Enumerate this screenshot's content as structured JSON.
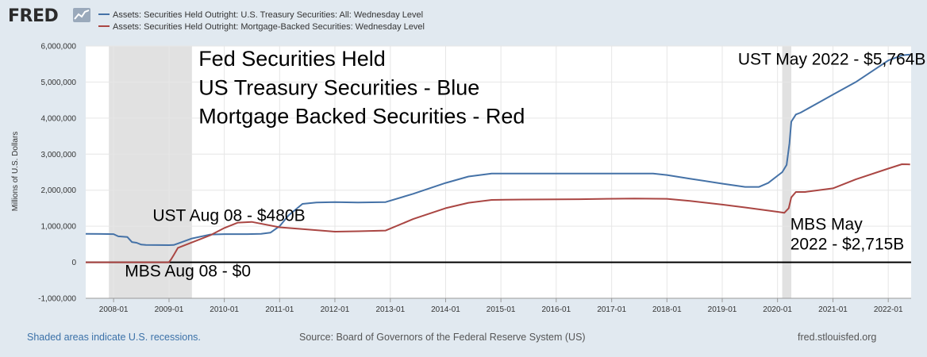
{
  "header": {
    "logo_text": "FRED",
    "logo_icon": "chart-line-icon"
  },
  "footer": {
    "recessions_note": "Shaded areas indicate U.S. recessions.",
    "source": "Source: Board of Governors of the Federal Reserve System (US)",
    "site": "fred.stlouisfed.org"
  },
  "chart_data": {
    "type": "line",
    "title": "",
    "ylabel": "Millions of U.S. Dollars",
    "xlabel": "",
    "ylim": [
      -1000000,
      6000000
    ],
    "xlim": [
      "2007-07-01",
      "2022-06-01"
    ],
    "y_ticks": [
      {
        "value": 6000000,
        "label": "6,000,000"
      },
      {
        "value": 5000000,
        "label": "5,000,000"
      },
      {
        "value": 4000000,
        "label": "4,000,000"
      },
      {
        "value": 3000000,
        "label": "3,000,000"
      },
      {
        "value": 2000000,
        "label": "2,000,000"
      },
      {
        "value": 1000000,
        "label": "1,000,000"
      },
      {
        "value": 0,
        "label": "0"
      },
      {
        "value": -1000000,
        "label": "-1,000,000"
      }
    ],
    "x_ticks": [
      "2008-01",
      "2009-01",
      "2010-01",
      "2011-01",
      "2012-01",
      "2013-01",
      "2014-01",
      "2015-01",
      "2016-01",
      "2017-01",
      "2018-01",
      "2019-01",
      "2020-01",
      "2021-01",
      "2022-01"
    ],
    "grid": true,
    "legend_placement": "top",
    "recessions": [
      {
        "start": "2007-12-01",
        "end": "2009-06-01"
      },
      {
        "start": "2020-02-01",
        "end": "2020-04-01"
      }
    ],
    "zero_line": true,
    "series": [
      {
        "name": "Assets: Securities Held Outright: U.S. Treasury Securities: All: Wednesday Level",
        "color": "#4572a7",
        "points": [
          [
            "2007-07-01",
            790000
          ],
          [
            "2008-01-01",
            780000
          ],
          [
            "2008-02-01",
            720000
          ],
          [
            "2008-04-01",
            700000
          ],
          [
            "2008-05-01",
            560000
          ],
          [
            "2008-06-01",
            540000
          ],
          [
            "2008-07-01",
            490000
          ],
          [
            "2008-08-01",
            480000
          ],
          [
            "2009-01-01",
            475000
          ],
          [
            "2009-02-01",
            480000
          ],
          [
            "2009-03-01",
            520000
          ],
          [
            "2009-06-01",
            660000
          ],
          [
            "2009-10-01",
            770000
          ],
          [
            "2010-01-01",
            780000
          ],
          [
            "2010-06-01",
            780000
          ],
          [
            "2010-09-01",
            790000
          ],
          [
            "2010-11-01",
            820000
          ],
          [
            "2011-01-01",
            1000000
          ],
          [
            "2011-03-01",
            1300000
          ],
          [
            "2011-06-01",
            1620000
          ],
          [
            "2011-09-01",
            1660000
          ],
          [
            "2012-01-01",
            1670000
          ],
          [
            "2012-06-01",
            1660000
          ],
          [
            "2012-12-01",
            1670000
          ],
          [
            "2013-06-01",
            1900000
          ],
          [
            "2014-01-01",
            2200000
          ],
          [
            "2014-06-01",
            2380000
          ],
          [
            "2014-11-01",
            2460000
          ],
          [
            "2016-01-01",
            2460000
          ],
          [
            "2017-01-01",
            2460000
          ],
          [
            "2017-10-01",
            2460000
          ],
          [
            "2018-01-01",
            2420000
          ],
          [
            "2018-06-01",
            2320000
          ],
          [
            "2019-01-01",
            2180000
          ],
          [
            "2019-06-01",
            2090000
          ],
          [
            "2019-09-01",
            2090000
          ],
          [
            "2019-11-01",
            2200000
          ],
          [
            "2020-01-01",
            2400000
          ],
          [
            "2020-02-01",
            2500000
          ],
          [
            "2020-03-01",
            2700000
          ],
          [
            "2020-03-20",
            3300000
          ],
          [
            "2020-04-01",
            3900000
          ],
          [
            "2020-05-01",
            4100000
          ],
          [
            "2020-06-01",
            4150000
          ],
          [
            "2021-01-01",
            4650000
          ],
          [
            "2021-06-01",
            5000000
          ],
          [
            "2022-01-01",
            5600000
          ],
          [
            "2022-04-01",
            5740000
          ],
          [
            "2022-05-25",
            5764000
          ]
        ]
      },
      {
        "name": "Assets: Securities Held Outright: Mortgage-Backed Securities: Wednesday Level",
        "color": "#aa4643",
        "points": [
          [
            "2007-07-01",
            0
          ],
          [
            "2008-12-31",
            0
          ],
          [
            "2009-01-15",
            80000
          ],
          [
            "2009-02-01",
            200000
          ],
          [
            "2009-03-01",
            400000
          ],
          [
            "2009-06-01",
            550000
          ],
          [
            "2009-10-01",
            750000
          ],
          [
            "2010-01-01",
            950000
          ],
          [
            "2010-04-01",
            1100000
          ],
          [
            "2010-07-01",
            1120000
          ],
          [
            "2011-01-01",
            970000
          ],
          [
            "2011-06-01",
            920000
          ],
          [
            "2012-01-01",
            850000
          ],
          [
            "2012-06-01",
            860000
          ],
          [
            "2012-12-01",
            880000
          ],
          [
            "2013-06-01",
            1200000
          ],
          [
            "2014-01-01",
            1500000
          ],
          [
            "2014-06-01",
            1650000
          ],
          [
            "2014-11-01",
            1730000
          ],
          [
            "2015-06-01",
            1740000
          ],
          [
            "2016-06-01",
            1750000
          ],
          [
            "2017-06-01",
            1770000
          ],
          [
            "2018-01-01",
            1760000
          ],
          [
            "2018-06-01",
            1700000
          ],
          [
            "2019-01-01",
            1600000
          ],
          [
            "2019-06-01",
            1520000
          ],
          [
            "2020-01-01",
            1400000
          ],
          [
            "2020-02-15",
            1370000
          ],
          [
            "2020-03-15",
            1500000
          ],
          [
            "2020-04-01",
            1800000
          ],
          [
            "2020-05-01",
            1950000
          ],
          [
            "2020-07-01",
            1950000
          ],
          [
            "2021-01-01",
            2050000
          ],
          [
            "2021-06-01",
            2300000
          ],
          [
            "2022-01-01",
            2600000
          ],
          [
            "2022-04-01",
            2720000
          ],
          [
            "2022-05-25",
            2715000
          ]
        ]
      }
    ],
    "annotations": [
      {
        "text": "Fed Securities Held",
        "x": "2009-07-15",
        "y": 5450000,
        "size": "large"
      },
      {
        "text": "US Treasury Securities - Blue",
        "x": "2009-07-15",
        "y": 4650000,
        "size": "large"
      },
      {
        "text": "Mortgage Backed Securities - Red",
        "x": "2009-07-15",
        "y": 3850000,
        "size": "large"
      },
      {
        "text": "UST May 2022 - $5,764B",
        "x": "2019-04-15",
        "y": 5480000,
        "size": "medium"
      },
      {
        "text": "UST Aug 08 - $480B",
        "x": "2008-09-15",
        "y": 1150000,
        "size": "medium"
      },
      {
        "text": "MBS Aug 08 - $0",
        "x": "2008-03-15",
        "y": -400000,
        "size": "medium"
      },
      {
        "text": "MBS May",
        "x": "2020-03-25",
        "y": 900000,
        "size": "medium"
      },
      {
        "text": "2022 - $2,715B",
        "x": "2020-03-25",
        "y": 350000,
        "size": "medium"
      }
    ]
  }
}
